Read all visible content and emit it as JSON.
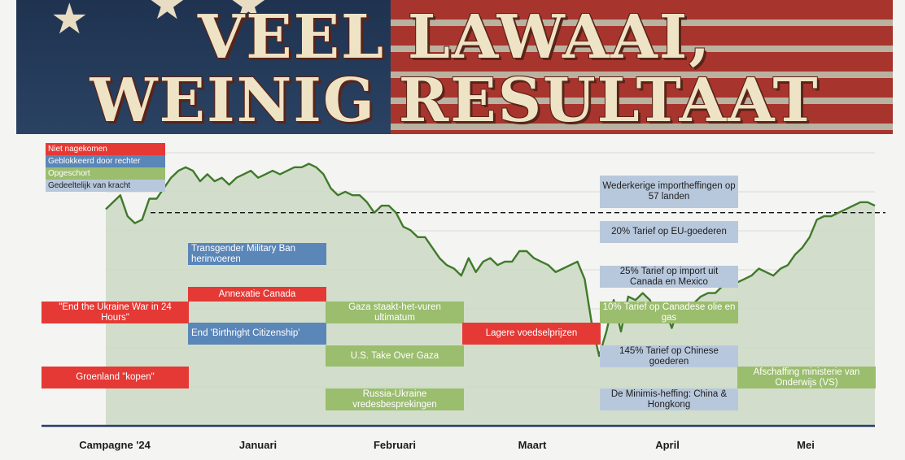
{
  "banner": {
    "line1": "VEEL LAWAAI,",
    "line2": "WEINIG RESULTAAT",
    "stars": [
      "star-icon",
      "star-icon",
      "star-icon"
    ]
  },
  "legend": [
    {
      "label": "Niet nagekomen",
      "color": "#e53935"
    },
    {
      "label": "Geblokkeerd door rechter",
      "color": "#5a86b8"
    },
    {
      "label": "Opgeschort",
      "color": "#9bbd6e"
    },
    {
      "label": "Gedeeltelijk van kracht",
      "color": "#b8c8dc"
    }
  ],
  "chart_data": {
    "type": "line",
    "x_labels": [
      "Campagne '24",
      "Januari",
      "Februari",
      "Maart",
      "April",
      "Mei"
    ],
    "series": [
      {
        "values": [
          62,
          64,
          66,
          60,
          58,
          59,
          65,
          65,
          68,
          71,
          73,
          74,
          73,
          70,
          72,
          70,
          71,
          69,
          71,
          72,
          73,
          71,
          72,
          73,
          72,
          73,
          74,
          74,
          75,
          74,
          72,
          68,
          66,
          67,
          66,
          66,
          64,
          61,
          63,
          63,
          61,
          57,
          56,
          54,
          54,
          51,
          48,
          46,
          45,
          43,
          48,
          44,
          47,
          48,
          46,
          47,
          47,
          50,
          50,
          48,
          47,
          46,
          44,
          45,
          46,
          47,
          42,
          29,
          20,
          27,
          36,
          27,
          37,
          36,
          38,
          36,
          31,
          34,
          28,
          34,
          33,
          35,
          37,
          38,
          38,
          40,
          40,
          41,
          42,
          43,
          45,
          44,
          43,
          45,
          46,
          49,
          51,
          54,
          59,
          60,
          60,
          61,
          62,
          63,
          64,
          64,
          63
        ]
      }
    ],
    "reference_value": 61,
    "ylim": [
      0,
      80
    ],
    "grid": true
  },
  "events": [
    {
      "id": "ukraine-war",
      "label": "\"End the Ukraine War in 24 Hours\"",
      "status": "niet-nagekomen"
    },
    {
      "id": "groenland",
      "label": "Groenland \"kopen\"",
      "status": "niet-nagekomen"
    },
    {
      "id": "transgender",
      "label": "Transgender Military Ban herinvoeren",
      "status": "geblokkeerd"
    },
    {
      "id": "annexatie",
      "label": "Annexatie Canada",
      "status": "niet-nagekomen"
    },
    {
      "id": "birthright",
      "label": "End 'Birthright Citizenship'",
      "status": "geblokkeerd"
    },
    {
      "id": "gaza-vuren",
      "label": "Gaza staakt-het-vuren ultimatum",
      "status": "opgeschort"
    },
    {
      "id": "gaza-takeover",
      "label": "U.S. Take Over Gaza",
      "status": "opgeschort"
    },
    {
      "id": "russia-ukraine",
      "label": "Russia-Ukraine vredesbesprekingen",
      "status": "opgeschort"
    },
    {
      "id": "voedselprijzen",
      "label": "Lagere voedselprijzen",
      "status": "niet-nagekomen"
    },
    {
      "id": "wederkerige",
      "label": "Wederkerige importheffingen op 57 landen",
      "status": "gedeeltelijk"
    },
    {
      "id": "eu-tarief",
      "label": "20% Tarief op EU-goederen",
      "status": "gedeeltelijk"
    },
    {
      "id": "canada-mexico",
      "label": "25% Tarief op import uit Canada en Mexico",
      "status": "gedeeltelijk"
    },
    {
      "id": "canadese-olie",
      "label": "10% Tarief op Canadese olie en gas",
      "status": "opgeschort"
    },
    {
      "id": "chinese-goederen",
      "label": "145% Tarief op Chinese goederen",
      "status": "gedeeltelijk"
    },
    {
      "id": "minimis",
      "label": "De Minimis-heffing: China & Hongkong",
      "status": "gedeeltelijk"
    },
    {
      "id": "onderwijs",
      "label": "Afschaffing ministerie van Onderwijs (VS)",
      "status": "opgeschort"
    }
  ]
}
